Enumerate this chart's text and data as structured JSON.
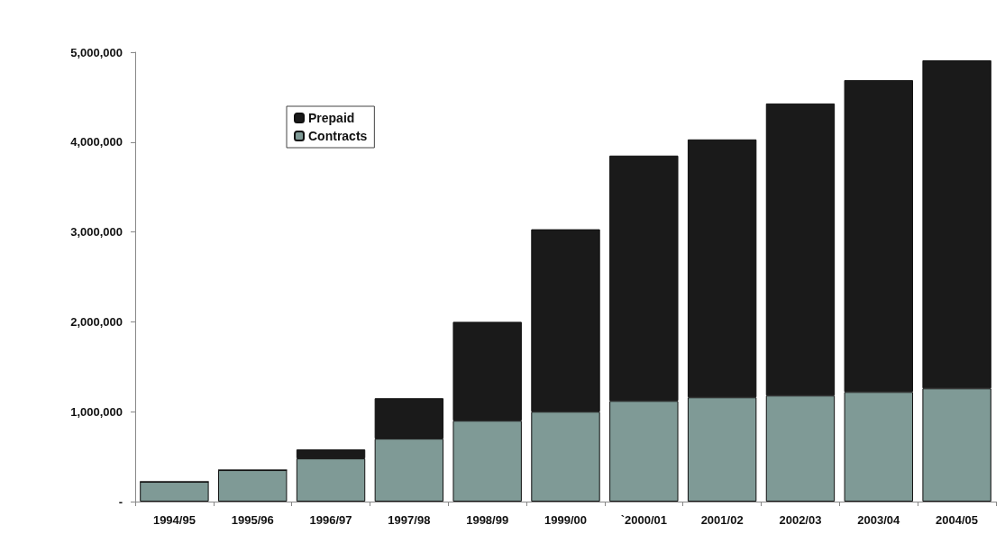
{
  "chart_data": {
    "type": "bar",
    "stacked": true,
    "categories": [
      "1994/95",
      "1995/96",
      "1996/97",
      "1997/98",
      "1998/99",
      "1999/00",
      "`2000/01",
      "2001/02",
      "2002/03",
      "2003/04",
      "2004/05"
    ],
    "series": [
      {
        "name": "Contracts",
        "color": "#7f9a96",
        "values": [
          220000,
          350000,
          480000,
          700000,
          900000,
          1000000,
          1120000,
          1160000,
          1180000,
          1220000,
          1260000
        ]
      },
      {
        "name": "Prepaid",
        "color": "#1a1a1a",
        "values": [
          0,
          0,
          100000,
          450000,
          1100000,
          2030000,
          2730000,
          2870000,
          3250000,
          3470000,
          3650000
        ]
      }
    ],
    "ylim": [
      0,
      5000000
    ],
    "yticks": [
      {
        "value": 0,
        "label": "-"
      },
      {
        "value": 1000000,
        "label": "1,000,000"
      },
      {
        "value": 2000000,
        "label": "2,000,000"
      },
      {
        "value": 3000000,
        "label": "3,000,000"
      },
      {
        "value": 4000000,
        "label": "4,000,000"
      },
      {
        "value": 5000000,
        "label": "5,000,000"
      }
    ],
    "grid": false,
    "legend": "top left"
  }
}
